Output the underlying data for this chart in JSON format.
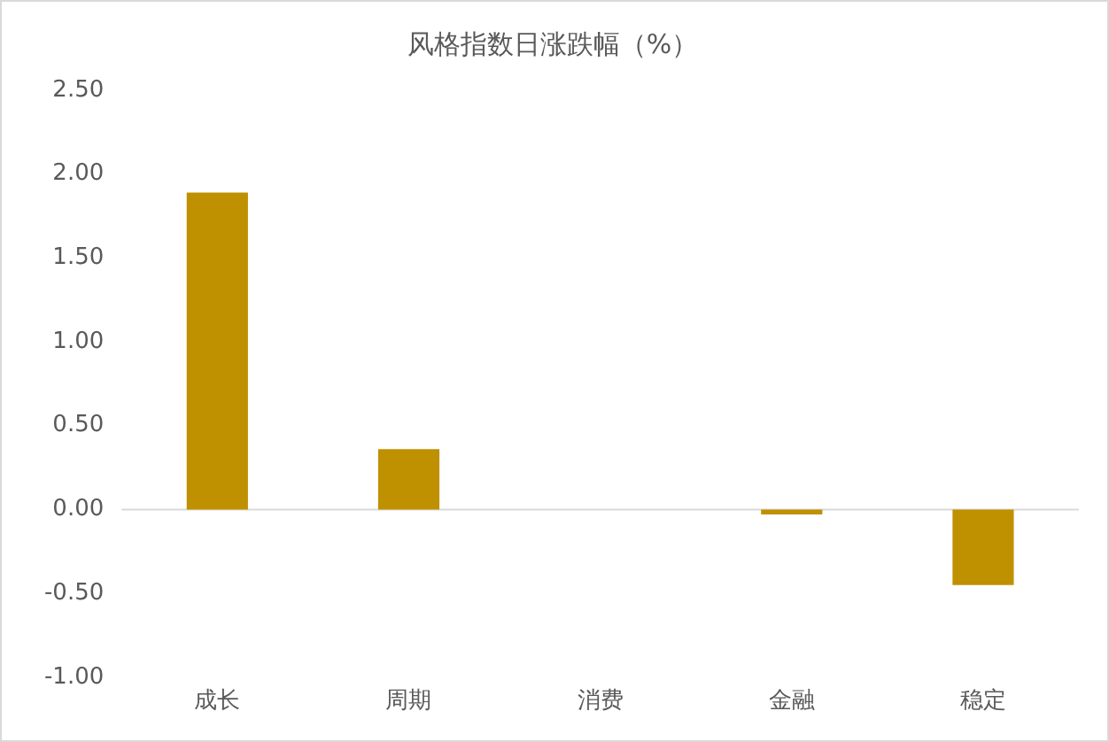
{
  "chart_data": {
    "type": "bar",
    "title": "风格指数日涨跌幅（%）",
    "categories": [
      "成长",
      "周期",
      "消费",
      "金融",
      "稳定"
    ],
    "values": [
      1.89,
      0.36,
      0,
      -0.03,
      -0.45
    ],
    "color": "#bf9000",
    "ylim": [
      -1,
      2.5
    ],
    "yticks": [
      {
        "value": -1,
        "label": "-1.00"
      },
      {
        "value": -0.5,
        "label": "-0.50"
      },
      {
        "value": 0,
        "label": "0.00"
      },
      {
        "value": 0.5,
        "label": "0.50"
      },
      {
        "value": 1,
        "label": "1.00"
      },
      {
        "value": 1.5,
        "label": "1.50"
      },
      {
        "value": 2,
        "label": "2.00"
      },
      {
        "value": 2.5,
        "label": "2.50"
      }
    ],
    "ref_lines": [
      {
        "axis": "y",
        "value": 0,
        "color": "#d9d9d9"
      }
    ],
    "grid": false,
    "legend": false
  }
}
